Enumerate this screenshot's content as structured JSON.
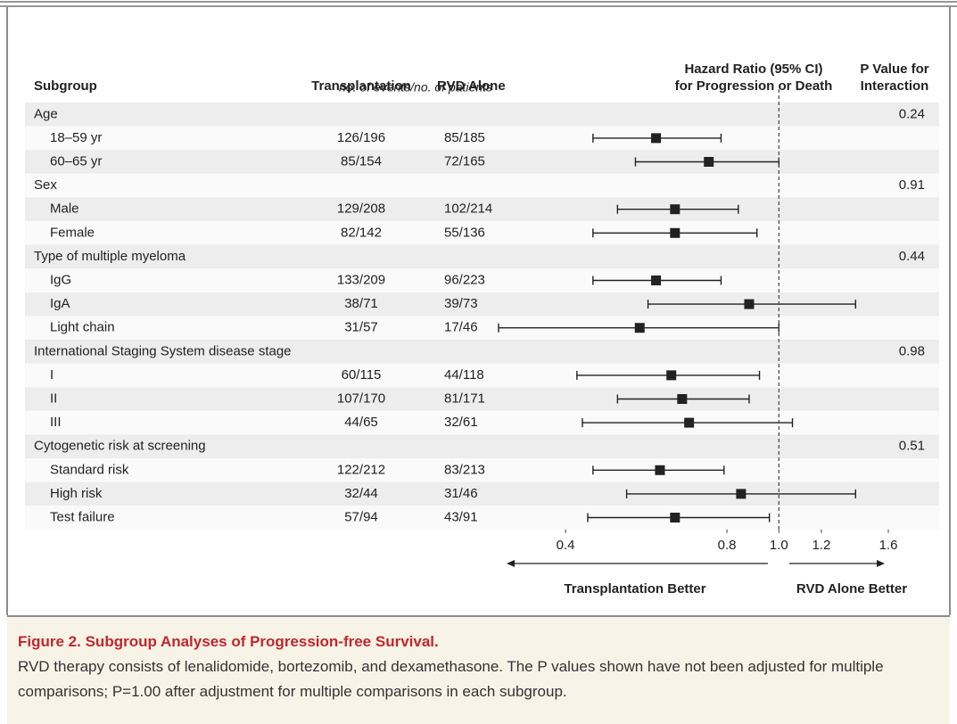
{
  "chart_data": {
    "type": "forest",
    "headers": {
      "subgroup": "Subgroup",
      "transplantation": "Transplantation",
      "rvd_alone": "RVD Alone",
      "hazard_ratio": [
        "Hazard Ratio (95% CI)",
        "for Progression or Death"
      ],
      "p_value": [
        "P Value for",
        "Interaction"
      ],
      "counts_note": "no. of events/no. of patients"
    },
    "groups": [
      {
        "name": "Age",
        "p_value": 0.24,
        "rows": [
          {
            "label": "18–59 yr",
            "transplantation": "126/196",
            "rvd_alone": "85/185",
            "hr": 0.59,
            "ci": [
              0.45,
              0.78
            ]
          },
          {
            "label": "60–65 yr",
            "transplantation": "85/154",
            "rvd_alone": "72/165",
            "hr": 0.74,
            "ci": [
              0.54,
              1.0
            ]
          }
        ]
      },
      {
        "name": "Sex",
        "p_value": 0.91,
        "rows": [
          {
            "label": "Male",
            "transplantation": "129/208",
            "rvd_alone": "102/214",
            "hr": 0.64,
            "ci": [
              0.5,
              0.84
            ]
          },
          {
            "label": "Female",
            "transplantation": "82/142",
            "rvd_alone": "55/136",
            "hr": 0.64,
            "ci": [
              0.45,
              0.91
            ]
          }
        ]
      },
      {
        "name": "Type of multiple myeloma",
        "p_value": 0.44,
        "rows": [
          {
            "label": "IgG",
            "transplantation": "133/209",
            "rvd_alone": "96/223",
            "hr": 0.59,
            "ci": [
              0.45,
              0.78
            ]
          },
          {
            "label": "IgA",
            "transplantation": "38/71",
            "rvd_alone": "39/73",
            "hr": 0.88,
            "ci": [
              0.57,
              1.39
            ]
          },
          {
            "label": "Light chain",
            "transplantation": "31/57",
            "rvd_alone": "17/46",
            "hr": 0.55,
            "ci": [
              0.3,
              1.0
            ]
          }
        ]
      },
      {
        "name": "International Staging System disease stage",
        "p_value": 0.98,
        "rows": [
          {
            "label": "I",
            "transplantation": "60/115",
            "rvd_alone": "44/118",
            "hr": 0.63,
            "ci": [
              0.42,
              0.92
            ]
          },
          {
            "label": "II",
            "transplantation": "107/170",
            "rvd_alone": "81/171",
            "hr": 0.66,
            "ci": [
              0.5,
              0.88
            ]
          },
          {
            "label": "III",
            "transplantation": "44/65",
            "rvd_alone": "32/61",
            "hr": 0.68,
            "ci": [
              0.43,
              1.06
            ]
          }
        ]
      },
      {
        "name": "Cytogenetic risk at screening",
        "p_value": 0.51,
        "rows": [
          {
            "label": "Standard risk",
            "transplantation": "122/212",
            "rvd_alone": "83/213",
            "hr": 0.6,
            "ci": [
              0.45,
              0.79
            ]
          },
          {
            "label": "High risk",
            "transplantation": "32/44",
            "rvd_alone": "31/46",
            "hr": 0.85,
            "ci": [
              0.52,
              1.39
            ]
          },
          {
            "label": "Test failure",
            "transplantation": "57/94",
            "rvd_alone": "43/91",
            "hr": 0.64,
            "ci": [
              0.44,
              0.96
            ]
          }
        ]
      }
    ],
    "xlim": [
      0.3,
      1.6
    ],
    "xticks": [
      0.4,
      0.8,
      {
        "value": 1,
        "label": "1.0"
      },
      1.2,
      1.6
    ],
    "log_scale": true,
    "reference_line": 1,
    "color": "#222222",
    "arrow_labels": {
      "left": "Transplantation Better",
      "right": "RVD Alone Better"
    }
  },
  "caption": {
    "label": "Figure 2.",
    "title": "Subgroup Analyses of Progression-free Survival.",
    "text": "RVD therapy consists of lenalidomide, bortezomib, and dexamethasone. The P values shown have not been adjusted for multiple comparisons; P=1.00 after adjustment for multiple comparisons in each subgroup."
  }
}
